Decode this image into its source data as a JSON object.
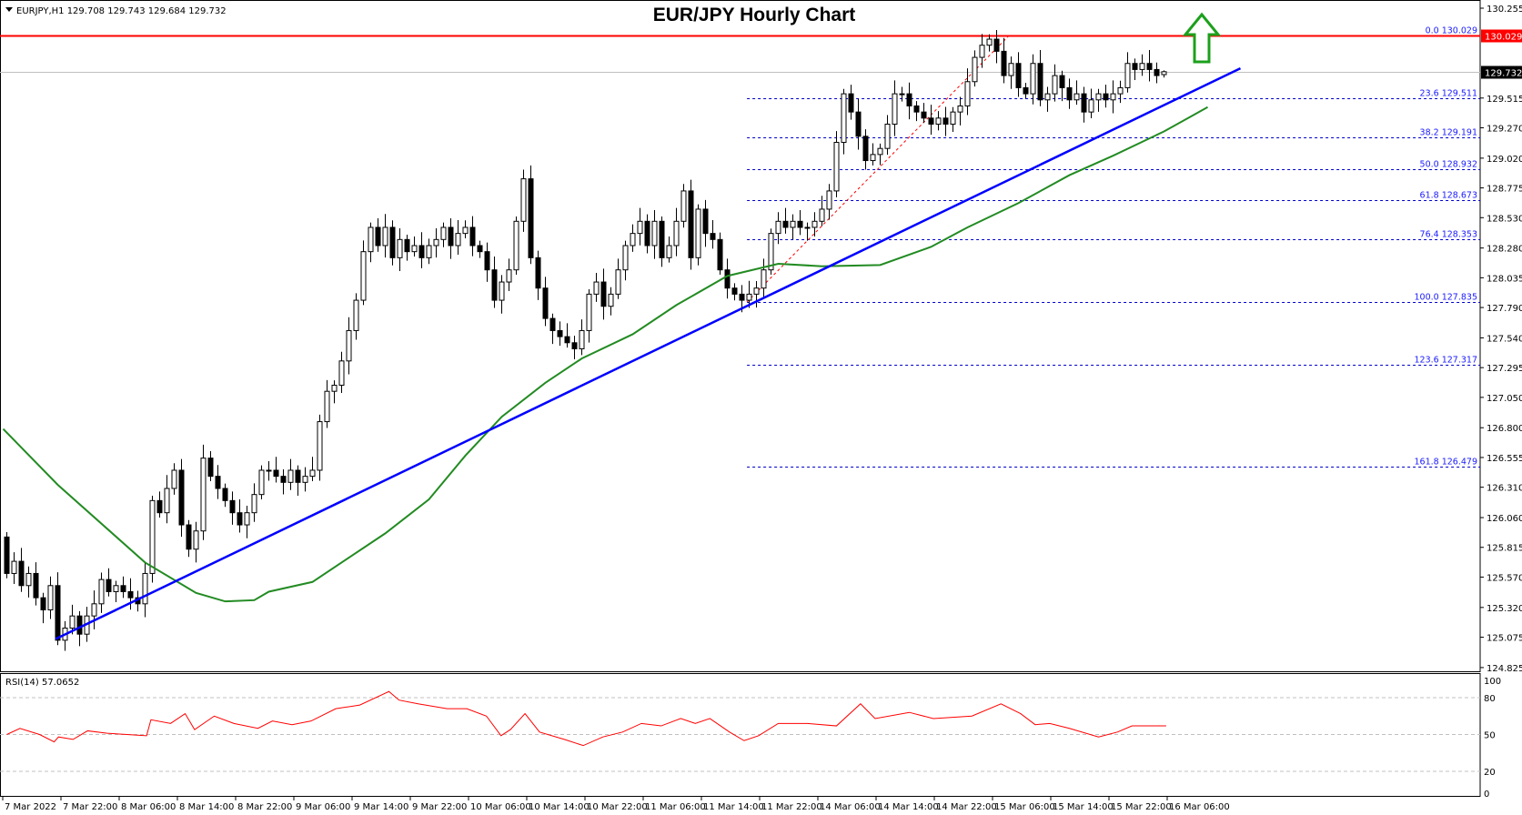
{
  "header": {
    "symbol_info": "EURJPY,H1  129.708 129.743 129.684 129.732",
    "title": "EUR/JPY Hourly Chart",
    "rsi_label": "RSI(14) 57.0652"
  },
  "colors": {
    "bull_candle": "#ffffff",
    "bear_candle": "#000000",
    "moving_average": "#228b22",
    "trendline": "#0000ff",
    "fib_lines": "#0000cc",
    "resistance_line": "#ff0000",
    "rsi_line": "#ff0000",
    "arrow": "#1ca01c"
  },
  "chart_data": [
    {
      "type": "candlestick",
      "title": "EUR/JPY Hourly Chart",
      "ylim": [
        124.825,
        130.255
      ],
      "price_ticks": [
        "130.255",
        "129.515",
        "129.270",
        "129.020",
        "128.775",
        "128.530",
        "128.280",
        "128.035",
        "127.790",
        "127.540",
        "127.295",
        "127.050",
        "126.800",
        "126.555",
        "126.310",
        "126.060",
        "125.815",
        "125.570",
        "125.320",
        "125.075",
        "124.825"
      ],
      "time_ticks": [
        "7 Mar 2022",
        "7 Mar 22:00",
        "8 Mar 06:00",
        "8 Mar 14:00",
        "8 Mar 22:00",
        "9 Mar 06:00",
        "9 Mar 14:00",
        "9 Mar 22:00",
        "10 Mar 06:00",
        "10 Mar 14:00",
        "10 Mar 22:00",
        "11 Mar 06:00",
        "11 Mar 14:00",
        "11 Mar 22:00",
        "14 Mar 06:00",
        "14 Mar 14:00",
        "14 Mar 22:00",
        "15 Mar 06:00",
        "15 Mar 14:00",
        "15 Mar 22:00",
        "16 Mar 06:00"
      ],
      "bars_per_time_tick": 8,
      "first_open": 125.9,
      "close": [
        125.6,
        125.7,
        125.5,
        125.6,
        125.4,
        125.3,
        125.5,
        125.05,
        125.15,
        125.25,
        125.1,
        125.25,
        125.35,
        125.55,
        125.45,
        125.5,
        125.45,
        125.4,
        125.35,
        125.6,
        126.2,
        126.1,
        126.3,
        126.45,
        126.0,
        125.8,
        125.95,
        126.55,
        126.4,
        126.3,
        126.2,
        126.1,
        126.0,
        126.1,
        126.25,
        126.45,
        126.45,
        126.4,
        126.35,
        126.45,
        126.35,
        126.4,
        126.45,
        126.85,
        127.1,
        127.15,
        127.35,
        127.6,
        127.85,
        128.25,
        128.45,
        128.3,
        128.45,
        128.2,
        128.35,
        128.25,
        128.3,
        128.2,
        128.3,
        128.35,
        128.45,
        128.3,
        128.4,
        128.45,
        128.3,
        128.25,
        128.1,
        127.85,
        128.0,
        128.1,
        128.5,
        128.85,
        128.2,
        127.95,
        127.7,
        127.6,
        127.55,
        127.5,
        127.45,
        127.6,
        127.9,
        128.0,
        127.8,
        127.9,
        128.1,
        128.3,
        128.4,
        128.5,
        128.3,
        128.5,
        128.2,
        128.3,
        128.5,
        128.75,
        128.2,
        128.6,
        128.4,
        128.35,
        128.1,
        127.95,
        127.9,
        127.85,
        127.9,
        127.95,
        128.1,
        128.4,
        128.5,
        128.45,
        128.5,
        128.45,
        128.45,
        128.5,
        128.6,
        128.75,
        129.15,
        129.55,
        129.4,
        129.2,
        129.0,
        129.05,
        129.1,
        129.3,
        129.55,
        129.55,
        129.45,
        129.4,
        129.35,
        129.3,
        129.35,
        129.3,
        129.4,
        129.45,
        129.65,
        129.85,
        129.95,
        130.0,
        129.9,
        129.7,
        129.8,
        129.6,
        129.55,
        129.8,
        129.5,
        129.55,
        129.7,
        129.6,
        129.5,
        129.55,
        129.4,
        129.5,
        129.55,
        129.5,
        129.55,
        129.6,
        129.8,
        129.75,
        129.8,
        129.75,
        129.7,
        129.732
      ],
      "last_ohlc": {
        "open": 129.708,
        "high": 129.743,
        "low": 129.684,
        "close": 129.732
      },
      "moving_average": [
        [
          -0.5,
          126.79
        ],
        [
          7,
          126.33
        ],
        [
          19,
          125.69
        ],
        [
          26,
          125.44
        ],
        [
          30,
          125.37
        ],
        [
          34,
          125.38
        ],
        [
          36,
          125.45
        ],
        [
          42,
          125.53
        ],
        [
          47,
          125.73
        ],
        [
          52,
          125.93
        ],
        [
          58,
          126.21
        ],
        [
          63,
          126.57
        ],
        [
          68,
          126.89
        ],
        [
          74,
          127.17
        ],
        [
          79,
          127.37
        ],
        [
          86,
          127.57
        ],
        [
          92,
          127.81
        ],
        [
          99,
          128.05
        ],
        [
          106,
          128.15
        ],
        [
          112,
          128.13
        ],
        [
          120,
          128.14
        ],
        [
          127,
          128.29
        ],
        [
          132,
          128.45
        ],
        [
          139,
          128.65
        ],
        [
          146,
          128.88
        ],
        [
          152,
          129.04
        ],
        [
          159,
          129.24
        ],
        [
          165,
          129.44
        ]
      ],
      "trendline": [
        [
          6.7,
          125.06
        ],
        [
          169.5,
          129.76
        ]
      ],
      "fib_swing": [
        [
          101.7,
          127.835
        ],
        [
          137.7,
          130.029
        ]
      ],
      "fib_levels": [
        {
          "label": "0.0 130.029",
          "level": 130.029
        },
        {
          "label": "23.6 129.511",
          "level": 129.511
        },
        {
          "label": "38.2 129.191",
          "level": 129.191
        },
        {
          "label": "50.0 128.932",
          "level": 128.932
        },
        {
          "label": "61.8 128.673",
          "level": 128.673
        },
        {
          "label": "76.4 128.353",
          "level": 128.353
        },
        {
          "label": "100.0 127.835",
          "level": 127.835
        },
        {
          "label": "123.6 127.317",
          "level": 127.317
        },
        {
          "label": "161.8 126.479",
          "level": 126.479
        }
      ],
      "resistance": {
        "level": 130.029,
        "label": "130.029"
      },
      "current_price": {
        "level": 129.732,
        "label": "129.732"
      },
      "annotation": "up-arrow"
    },
    {
      "type": "line",
      "title": "RSI(14) 57.0652",
      "ylim": [
        0,
        100
      ],
      "y_ticks": [
        "100",
        "80",
        "50",
        "20",
        "0"
      ],
      "levels": [
        80,
        50,
        20
      ],
      "points": [
        [
          0,
          50
        ],
        [
          1.8,
          55
        ],
        [
          4.5,
          50
        ],
        [
          6.5,
          44
        ],
        [
          7.1,
          48
        ],
        [
          9.1,
          46
        ],
        [
          11.1,
          53
        ],
        [
          13.8,
          51
        ],
        [
          16.5,
          50
        ],
        [
          19.2,
          49
        ],
        [
          19.8,
          62
        ],
        [
          22.5,
          59
        ],
        [
          24.5,
          67
        ],
        [
          25.8,
          54
        ],
        [
          28.5,
          65
        ],
        [
          31.2,
          59
        ],
        [
          34.5,
          55
        ],
        [
          36.5,
          61
        ],
        [
          39.2,
          58
        ],
        [
          41.8,
          61
        ],
        [
          45.2,
          71
        ],
        [
          48.5,
          74
        ],
        [
          52.5,
          85
        ],
        [
          53.9,
          78
        ],
        [
          56.5,
          75
        ],
        [
          60.5,
          71
        ],
        [
          63.2,
          71
        ],
        [
          65.9,
          65
        ],
        [
          67.9,
          49
        ],
        [
          69.2,
          54
        ],
        [
          71.2,
          67
        ],
        [
          73.2,
          52
        ],
        [
          76.6,
          46
        ],
        [
          79.2,
          41
        ],
        [
          81.9,
          48
        ],
        [
          84.6,
          52
        ],
        [
          87.2,
          59
        ],
        [
          89.9,
          57
        ],
        [
          92.6,
          63
        ],
        [
          94.6,
          59
        ],
        [
          96.6,
          63
        ],
        [
          99.3,
          52
        ],
        [
          101.3,
          45
        ],
        [
          103.3,
          49
        ],
        [
          106,
          59
        ],
        [
          110,
          59
        ],
        [
          114,
          57
        ],
        [
          117.3,
          75
        ],
        [
          119.3,
          63
        ],
        [
          124,
          68
        ],
        [
          127.3,
          63
        ],
        [
          132.6,
          65
        ],
        [
          136.6,
          75
        ],
        [
          139.3,
          67
        ],
        [
          141.3,
          58
        ],
        [
          143.3,
          59
        ],
        [
          146,
          55
        ],
        [
          150,
          48
        ],
        [
          152.6,
          52
        ],
        [
          154.6,
          57
        ],
        [
          159.3,
          57.07
        ]
      ]
    }
  ]
}
